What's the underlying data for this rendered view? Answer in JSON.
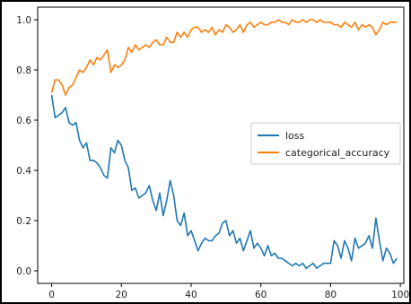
{
  "chart_data": {
    "type": "line",
    "title": "",
    "xlabel": "",
    "ylabel": "",
    "xlim": [
      -4,
      101
    ],
    "ylim": [
      -0.05,
      1.05
    ],
    "x_ticks": [
      0,
      20,
      40,
      60,
      80,
      100
    ],
    "y_ticks": [
      0.0,
      0.2,
      0.4,
      0.6,
      0.8,
      1.0
    ],
    "x_tick_labels": [
      "0",
      "20",
      "40",
      "60",
      "80",
      "100"
    ],
    "y_tick_labels": [
      "0.0",
      "0.2",
      "0.4",
      "0.6",
      "0.8",
      "1.0"
    ],
    "grid": false,
    "legend_position": "center-right",
    "series": [
      {
        "name": "loss",
        "color": "#1f77b4",
        "x": [
          0,
          1,
          2,
          3,
          4,
          5,
          6,
          7,
          8,
          9,
          10,
          11,
          12,
          13,
          14,
          15,
          16,
          17,
          18,
          19,
          20,
          21,
          22,
          23,
          24,
          25,
          26,
          27,
          28,
          29,
          30,
          31,
          32,
          33,
          34,
          35,
          36,
          37,
          38,
          39,
          40,
          41,
          42,
          43,
          44,
          45,
          46,
          47,
          48,
          49,
          50,
          51,
          52,
          53,
          54,
          55,
          56,
          57,
          58,
          59,
          60,
          61,
          62,
          63,
          64,
          65,
          66,
          67,
          68,
          69,
          70,
          71,
          72,
          73,
          74,
          75,
          76,
          77,
          78,
          79,
          80,
          81,
          82,
          83,
          84,
          85,
          86,
          87,
          88,
          89,
          90,
          91,
          92,
          93,
          94,
          95,
          96,
          97,
          98,
          99
        ],
        "values": [
          0.7,
          0.61,
          0.62,
          0.63,
          0.65,
          0.59,
          0.58,
          0.59,
          0.52,
          0.49,
          0.51,
          0.44,
          0.44,
          0.43,
          0.41,
          0.38,
          0.37,
          0.49,
          0.47,
          0.52,
          0.5,
          0.44,
          0.41,
          0.32,
          0.33,
          0.29,
          0.3,
          0.31,
          0.34,
          0.28,
          0.24,
          0.31,
          0.22,
          0.28,
          0.36,
          0.3,
          0.2,
          0.18,
          0.23,
          0.14,
          0.16,
          0.12,
          0.08,
          0.11,
          0.13,
          0.12,
          0.12,
          0.14,
          0.15,
          0.19,
          0.2,
          0.14,
          0.16,
          0.11,
          0.13,
          0.08,
          0.12,
          0.16,
          0.09,
          0.11,
          0.09,
          0.06,
          0.1,
          0.06,
          0.07,
          0.05,
          0.05,
          0.04,
          0.03,
          0.02,
          0.03,
          0.02,
          0.03,
          0.01,
          0.02,
          0.03,
          0.01,
          0.02,
          0.03,
          0.03,
          0.03,
          0.12,
          0.1,
          0.05,
          0.12,
          0.09,
          0.04,
          0.13,
          0.09,
          0.1,
          0.11,
          0.14,
          0.09,
          0.21,
          0.12,
          0.04,
          0.09,
          0.07,
          0.03,
          0.05
        ]
      },
      {
        "name": "categorical_accuracy",
        "color": "#ff7f0e",
        "x": [
          0,
          1,
          2,
          3,
          4,
          5,
          6,
          7,
          8,
          9,
          10,
          11,
          12,
          13,
          14,
          15,
          16,
          17,
          18,
          19,
          20,
          21,
          22,
          23,
          24,
          25,
          26,
          27,
          28,
          29,
          30,
          31,
          32,
          33,
          34,
          35,
          36,
          37,
          38,
          39,
          40,
          41,
          42,
          43,
          44,
          45,
          46,
          47,
          48,
          49,
          50,
          51,
          52,
          53,
          54,
          55,
          56,
          57,
          58,
          59,
          60,
          61,
          62,
          63,
          64,
          65,
          66,
          67,
          68,
          69,
          70,
          71,
          72,
          73,
          74,
          75,
          76,
          77,
          78,
          79,
          80,
          81,
          82,
          83,
          84,
          85,
          86,
          87,
          88,
          89,
          90,
          91,
          92,
          93,
          94,
          95,
          96,
          97,
          98,
          99
        ],
        "values": [
          0.71,
          0.76,
          0.76,
          0.74,
          0.7,
          0.73,
          0.74,
          0.77,
          0.8,
          0.79,
          0.81,
          0.84,
          0.82,
          0.85,
          0.84,
          0.86,
          0.88,
          0.79,
          0.82,
          0.81,
          0.82,
          0.84,
          0.89,
          0.87,
          0.9,
          0.88,
          0.89,
          0.9,
          0.89,
          0.91,
          0.92,
          0.9,
          0.9,
          0.93,
          0.91,
          0.91,
          0.95,
          0.93,
          0.95,
          0.93,
          0.96,
          0.97,
          0.97,
          0.95,
          0.96,
          0.95,
          0.97,
          0.94,
          0.96,
          0.95,
          0.98,
          0.97,
          0.95,
          0.96,
          0.98,
          0.95,
          0.98,
          0.99,
          0.97,
          0.98,
          0.99,
          0.98,
          0.98,
          0.99,
          0.99,
          1.0,
          0.99,
          0.99,
          0.98,
          1.0,
          0.99,
          0.99,
          1.0,
          0.99,
          1.0,
          1.0,
          0.99,
          1.0,
          0.99,
          0.99,
          0.99,
          0.98,
          0.98,
          0.97,
          0.99,
          0.98,
          0.97,
          0.99,
          0.96,
          0.98,
          0.97,
          0.98,
          0.97,
          0.94,
          0.96,
          0.99,
          0.98,
          0.99,
          0.99,
          0.99
        ]
      }
    ]
  }
}
